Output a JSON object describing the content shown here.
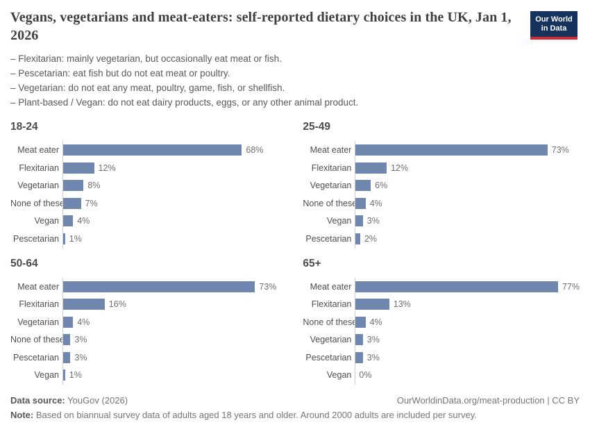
{
  "page": {
    "title": "Vegans, vegetarians and meat-eaters: self-reported dietary choices in the UK, Jan 1, 2026",
    "definitions": [
      "– Flexitarian: mainly vegetarian, but occasionally eat meat or fish.",
      "– Pescetarian: eat fish but do not eat meat or poultry.",
      "– Vegetarian: do not eat any meat, poultry, game, fish, or shellfish.",
      "– Plant-based / Vegan: do not eat dairy products, eggs, or any other animal product."
    ],
    "logo": {
      "line1": "Our World",
      "line2": "in Data"
    }
  },
  "chart_data": [
    {
      "type": "bar",
      "orientation": "horizontal",
      "title": "18-24",
      "categories": [
        "Meat eater",
        "Flexitarian",
        "Vegetarian",
        "None of these",
        "Vegan",
        "Pescetarian"
      ],
      "values": [
        68,
        12,
        8,
        7,
        4,
        1
      ],
      "value_suffix": "%",
      "xlim": [
        0,
        100
      ],
      "grid": false,
      "legend": false
    },
    {
      "type": "bar",
      "orientation": "horizontal",
      "title": "25-49",
      "categories": [
        "Meat eater",
        "Flexitarian",
        "Vegetarian",
        "None of these",
        "Vegan",
        "Pescetarian"
      ],
      "values": [
        73,
        12,
        6,
        4,
        3,
        2
      ],
      "value_suffix": "%",
      "xlim": [
        0,
        100
      ],
      "grid": false,
      "legend": false
    },
    {
      "type": "bar",
      "orientation": "horizontal",
      "title": "50-64",
      "categories": [
        "Meat eater",
        "Flexitarian",
        "Vegetarian",
        "None of these",
        "Pescetarian",
        "Vegan"
      ],
      "values": [
        73,
        16,
        4,
        3,
        3,
        1
      ],
      "value_suffix": "%",
      "xlim": [
        0,
        100
      ],
      "grid": false,
      "legend": false
    },
    {
      "type": "bar",
      "orientation": "horizontal",
      "title": "65+",
      "categories": [
        "Meat eater",
        "Flexitarian",
        "None of these",
        "Vegetarian",
        "Pescetarian",
        "Vegan"
      ],
      "values": [
        77,
        13,
        4,
        3,
        3,
        0
      ],
      "value_suffix": "%",
      "xlim": [
        0,
        100
      ],
      "grid": false,
      "legend": false
    }
  ],
  "footer": {
    "source_label": "Data source:",
    "source_value": " YouGov (2026)",
    "attribution": "OurWorldinData.org/meat-production | CC BY",
    "note_label": "Note:",
    "note_value": " Based on biannual survey data of adults aged 18 years and older. Around 2000 adults are included per survey."
  },
  "style": {
    "bar_color": "#6f87ae",
    "axis_color": "#cccccc",
    "logo_bg": "#15335c",
    "logo_accent": "#d7282e"
  }
}
